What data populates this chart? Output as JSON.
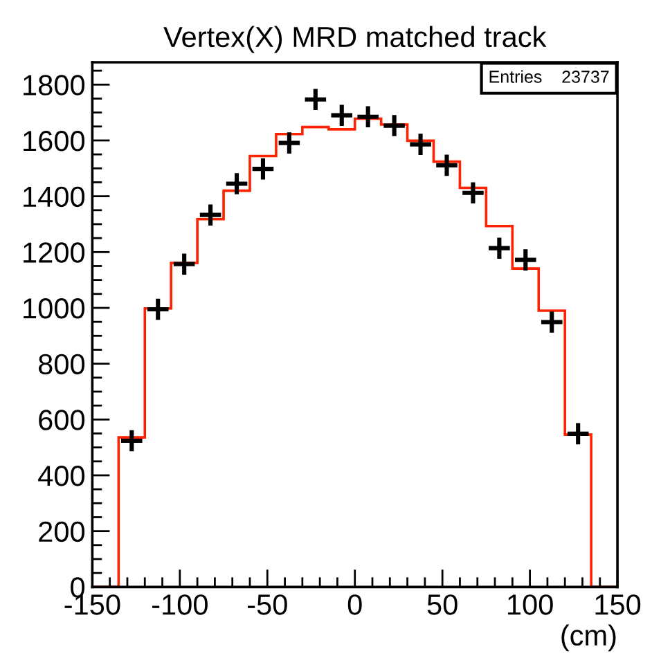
{
  "chart_data": {
    "type": "histogram",
    "title": "Vertex(X) MRD matched track",
    "xlabel": "(cm)",
    "annotations": [
      "Entries    23737"
    ],
    "bins": [
      -150,
      -135,
      -120,
      -105,
      -90,
      -75,
      -60,
      -45,
      -30,
      -15,
      0,
      15,
      30,
      45,
      60,
      75,
      90,
      105,
      120,
      135,
      150
    ],
    "series": [
      {
        "color": "#ff2200",
        "values": [
          0,
          536,
          998,
          1161,
          1318,
          1420,
          1544,
          1623,
          1648,
          1640,
          1678,
          1657,
          1599,
          1524,
          1430,
          1293,
          1141,
          990,
          546,
          0
        ]
      },
      {
        "type": "scatter",
        "color": "#000000",
        "marker": "cross",
        "x": [
          -127.5,
          -112.5,
          -97.5,
          -82.5,
          -67.5,
          -52.5,
          -37.5,
          -22.5,
          -7.5,
          7.5,
          22.5,
          37.5,
          52.5,
          67.5,
          82.5,
          97.5,
          112.5,
          127.5
        ],
        "values": [
          524,
          995,
          1157,
          1333,
          1445,
          1498,
          1591,
          1747,
          1690,
          1685,
          1653,
          1586,
          1511,
          1412,
          1214,
          1172,
          949,
          549
        ]
      }
    ],
    "xlim": [
      -150,
      150
    ],
    "ylim": [
      0,
      1880
    ],
    "xticks": [
      -150,
      -100,
      -50,
      0,
      50,
      100,
      150
    ],
    "yticks": [
      0,
      200,
      400,
      600,
      800,
      1000,
      1200,
      1400,
      1600,
      1800
    ],
    "grid": false,
    "legend": false
  }
}
